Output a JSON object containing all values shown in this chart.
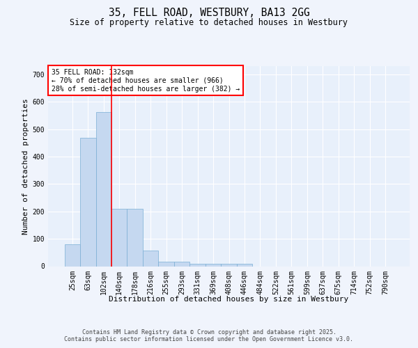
{
  "title_line1": "35, FELL ROAD, WESTBURY, BA13 2GG",
  "title_line2": "Size of property relative to detached houses in Westbury",
  "xlabel": "Distribution of detached houses by size in Westbury",
  "ylabel": "Number of detached properties",
  "categories": [
    "25sqm",
    "63sqm",
    "102sqm",
    "140sqm",
    "178sqm",
    "216sqm",
    "255sqm",
    "293sqm",
    "331sqm",
    "369sqm",
    "408sqm",
    "446sqm",
    "484sqm",
    "522sqm",
    "561sqm",
    "599sqm",
    "637sqm",
    "675sqm",
    "714sqm",
    "752sqm",
    "790sqm"
  ],
  "values": [
    79,
    468,
    562,
    210,
    210,
    57,
    16,
    16,
    10,
    10,
    8,
    8,
    0,
    0,
    0,
    0,
    0,
    0,
    0,
    0,
    0
  ],
  "bar_color": "#c5d8f0",
  "bar_edge_color": "#7aaed4",
  "red_line_x": 2.5,
  "annotation_text": "35 FELL ROAD: 132sqm\n← 70% of detached houses are smaller (966)\n28% of semi-detached houses are larger (382) →",
  "ylim": [
    0,
    730
  ],
  "yticks": [
    0,
    100,
    200,
    300,
    400,
    500,
    600,
    700
  ],
  "plot_bg_color": "#e8f0fb",
  "fig_bg_color": "#f0f4fc",
  "grid_color": "#ffffff",
  "footer_line1": "Contains HM Land Registry data © Crown copyright and database right 2025.",
  "footer_line2": "Contains public sector information licensed under the Open Government Licence v3.0.",
  "title_fontsize": 10.5,
  "subtitle_fontsize": 8.5,
  "axis_label_fontsize": 8,
  "tick_fontsize": 7,
  "annotation_fontsize": 7,
  "footer_fontsize": 6
}
